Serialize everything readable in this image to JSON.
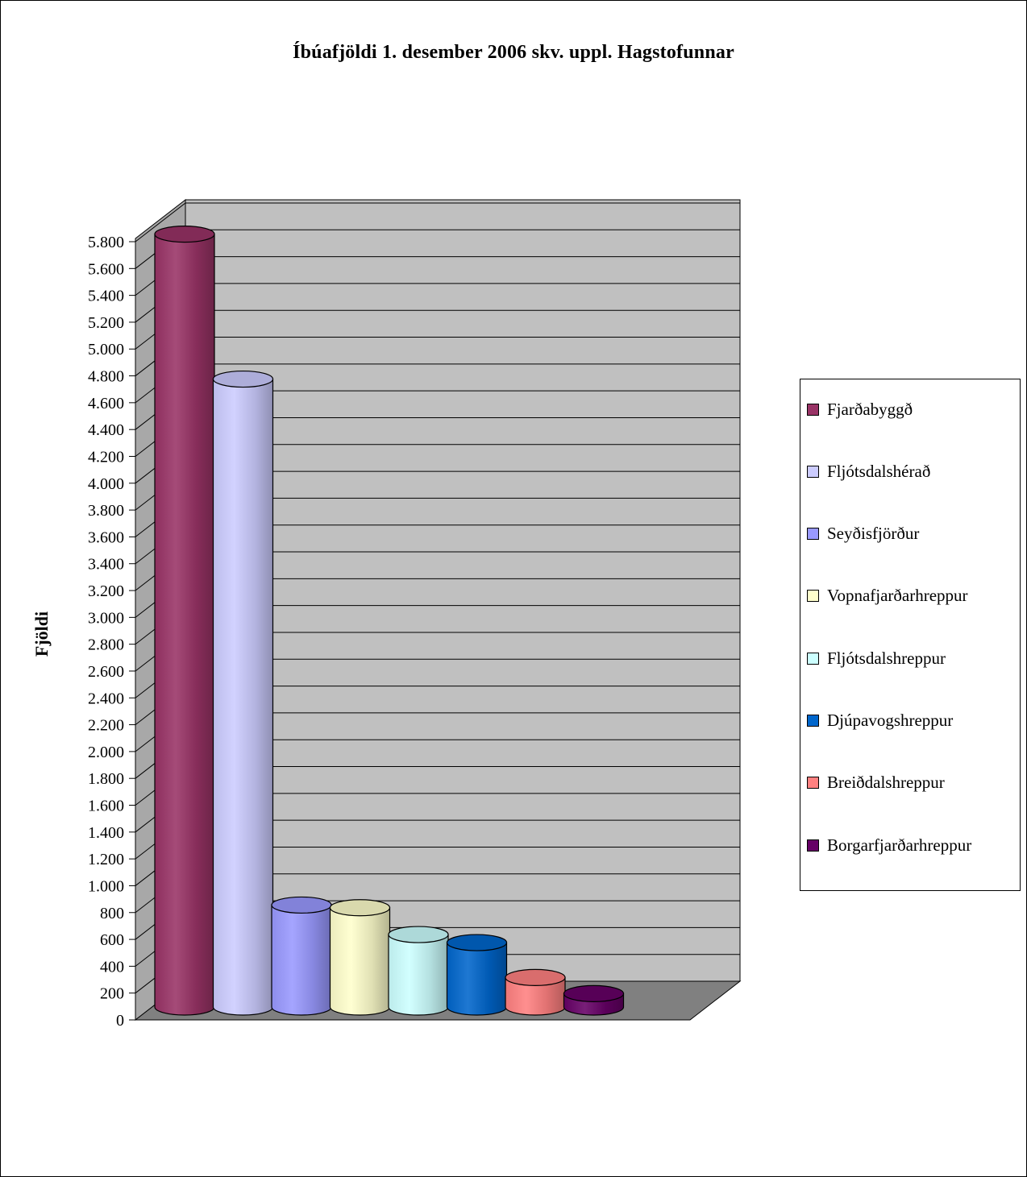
{
  "chart_data": {
    "type": "bar",
    "style": "3d-cylinder",
    "title": "Íbúafjöldi 1. desember 2006 skv. uppl. Hagstofunnar",
    "ylabel": "Fjöldi",
    "xlabel": "",
    "ylim": [
      0,
      5800
    ],
    "yticks": [
      0,
      200,
      400,
      600,
      800,
      1000,
      1200,
      1400,
      1600,
      1800,
      2000,
      2200,
      2400,
      2600,
      2800,
      3000,
      3200,
      3400,
      3600,
      3800,
      4000,
      4200,
      4400,
      4600,
      4800,
      5000,
      5200,
      5400,
      5600,
      5800
    ],
    "ytick_labels": [
      "0",
      "200",
      "400",
      "600",
      "800",
      "1.000",
      "1.200",
      "1.400",
      "1.600",
      "1.800",
      "2.000",
      "2.200",
      "2.400",
      "2.600",
      "2.800",
      "3.000",
      "3.200",
      "3.400",
      "3.600",
      "3.800",
      "4.000",
      "4.200",
      "4.400",
      "4.600",
      "4.800",
      "5.000",
      "5.200",
      "5.400",
      "5.600",
      "5.800"
    ],
    "grid": true,
    "legend_position": "right",
    "series": [
      {
        "name": "Fjarðabyggð",
        "value": 5760,
        "color": "#993366"
      },
      {
        "name": "Fljótsdalshérað",
        "value": 4680,
        "color": "#ccccff"
      },
      {
        "name": "Seyðisfjörður",
        "value": 760,
        "color": "#9999ff"
      },
      {
        "name": "Vopnafjarðarhreppur",
        "value": 740,
        "color": "#ffffcc"
      },
      {
        "name": "Fljótsdalshreppur",
        "value": 540,
        "color": "#ccffff"
      },
      {
        "name": "Djúpavogshreppur",
        "value": 480,
        "color": "#0066cc"
      },
      {
        "name": "Breiðdalshreppur",
        "value": 220,
        "color": "#ff8080"
      },
      {
        "name": "Borgarfjarðarhreppur",
        "value": 100,
        "color": "#660066"
      }
    ]
  }
}
